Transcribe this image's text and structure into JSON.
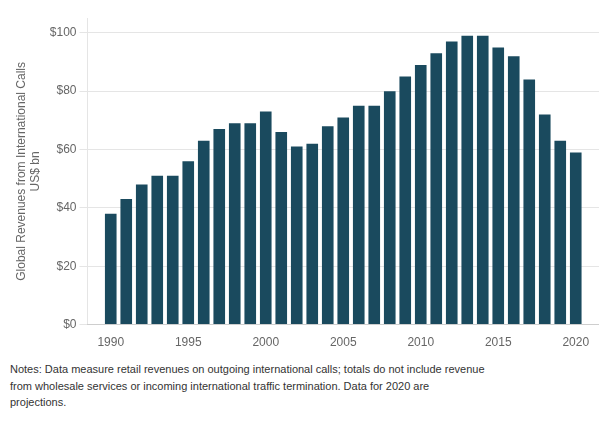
{
  "chart_data": {
    "type": "bar",
    "x": [
      1990,
      1991,
      1992,
      1993,
      1994,
      1995,
      1996,
      1997,
      1998,
      1999,
      2000,
      2001,
      2002,
      2003,
      2004,
      2005,
      2006,
      2007,
      2008,
      2009,
      2010,
      2011,
      2012,
      2013,
      2014,
      2015,
      2016,
      2017,
      2018,
      2019,
      2020
    ],
    "values": [
      38,
      43,
      48,
      51,
      51,
      56,
      63,
      67,
      69,
      69,
      73,
      66,
      61,
      62,
      68,
      71,
      75,
      75,
      80,
      85,
      89,
      93,
      97,
      99,
      99,
      95,
      92,
      84,
      72,
      63,
      59
    ],
    "color": "#1a4a5e",
    "ylabel": "Global Revenues from International Calls\nUS$ bn",
    "xlim": [
      1988.5,
      2021.5
    ],
    "xticks": [
      1990,
      1995,
      2000,
      2005,
      2010,
      2015,
      2020
    ],
    "ylim": [
      0,
      105
    ],
    "yticks": [
      {
        "value": 0,
        "label": "$0"
      },
      {
        "value": 20,
        "label": "$20"
      },
      {
        "value": 40,
        "label": "$40"
      },
      {
        "value": 60,
        "label": "$60"
      },
      {
        "value": 80,
        "label": "$80"
      },
      {
        "value": 100,
        "label": "$100"
      }
    ],
    "grid": "y",
    "note": [
      "Notes: Data measure retail revenues on outgoing international calls; totals do not include revenue",
      "from wholesale services or incoming international traffic termination. Data for 2020 are",
      "projections."
    ]
  }
}
